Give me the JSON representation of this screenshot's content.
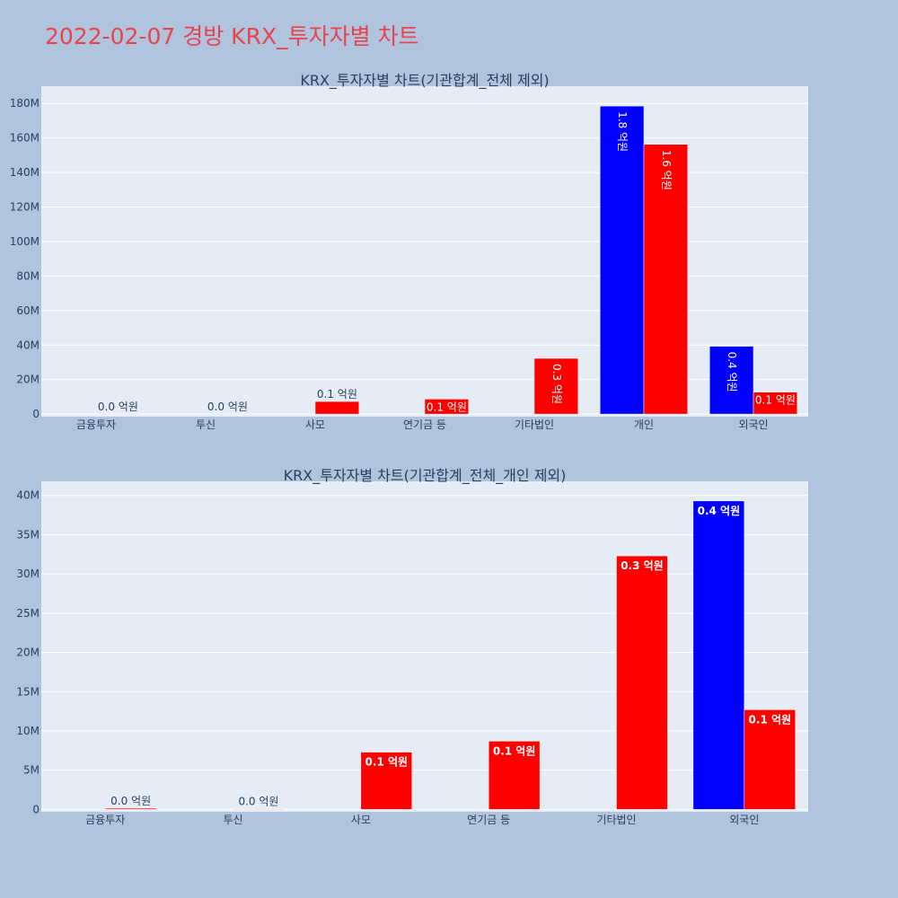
{
  "page_title": "2022-02-07 경방 KRX_투자자별 차트",
  "colors": {
    "background": "#b0c4de",
    "plot_background": "#e5ecf6",
    "title": "#e8434f",
    "buy": "#0000ff",
    "sell": "#ff0000",
    "text": "#2a3f5f",
    "grid": "#ffffff"
  },
  "chart_data": [
    {
      "type": "bar",
      "title": "KRX_투자자별 차트(기관합계_전체 제외)",
      "categories": [
        "금융투자",
        "투신",
        "사모",
        "연기금 등",
        "기타법인",
        "개인",
        "외국인"
      ],
      "series": [
        {
          "color": "#0000ff",
          "values": [
            0,
            0,
            0,
            0,
            0,
            178500000,
            39300000
          ],
          "labels": [
            "",
            "",
            "",
            "",
            "",
            "1.8 억원",
            "0.4 억원"
          ]
        },
        {
          "color": "#ff0000",
          "values": [
            150000,
            80000,
            7300000,
            8700000,
            32300000,
            156300000,
            12700000
          ],
          "labels": [
            "0.0 억원",
            "0.0 억원",
            "0.1 억원",
            "0.1 억원",
            "0.3 억원",
            "1.6 억원",
            "0.1 억원"
          ]
        }
      ],
      "ylim": [
        -1500000,
        190000000
      ],
      "yticks": [
        {
          "value": 0,
          "label": "0"
        },
        {
          "value": 20000000,
          "label": "20M"
        },
        {
          "value": 40000000,
          "label": "40M"
        },
        {
          "value": 60000000,
          "label": "60M"
        },
        {
          "value": 80000000,
          "label": "80M"
        },
        {
          "value": 100000000,
          "label": "100M"
        },
        {
          "value": 120000000,
          "label": "120M"
        },
        {
          "value": 140000000,
          "label": "140M"
        },
        {
          "value": 160000000,
          "label": "160M"
        },
        {
          "value": 180000000,
          "label": "180M"
        }
      ],
      "grid": true,
      "legend": "none"
    },
    {
      "type": "bar",
      "title": "KRX_투자자별 차트(기관합계_전체_개인 제외)",
      "categories": [
        "금융투자",
        "투신",
        "사모",
        "연기금 등",
        "기타법인",
        "외국인"
      ],
      "series": [
        {
          "color": "#0000ff",
          "values": [
            0,
            0,
            0,
            0,
            0,
            39300000
          ],
          "labels": [
            "",
            "",
            "",
            "",
            "",
            "0.4 억원"
          ]
        },
        {
          "color": "#ff0000",
          "values": [
            150000,
            80000,
            7300000,
            8700000,
            32300000,
            12700000
          ],
          "labels": [
            "0.0 억원",
            "0.0 억원",
            "0.1 억원",
            "0.1 억원",
            "0.3 억원",
            "0.1 억원"
          ]
        }
      ],
      "ylim": [
        -300000,
        41800000
      ],
      "yticks": [
        {
          "value": 0,
          "label": "0"
        },
        {
          "value": 5000000,
          "label": "5M"
        },
        {
          "value": 10000000,
          "label": "10M"
        },
        {
          "value": 15000000,
          "label": "15M"
        },
        {
          "value": 20000000,
          "label": "20M"
        },
        {
          "value": 25000000,
          "label": "25M"
        },
        {
          "value": 30000000,
          "label": "30M"
        },
        {
          "value": 35000000,
          "label": "35M"
        },
        {
          "value": 40000000,
          "label": "40M"
        }
      ],
      "grid": true,
      "legend": "none"
    }
  ]
}
